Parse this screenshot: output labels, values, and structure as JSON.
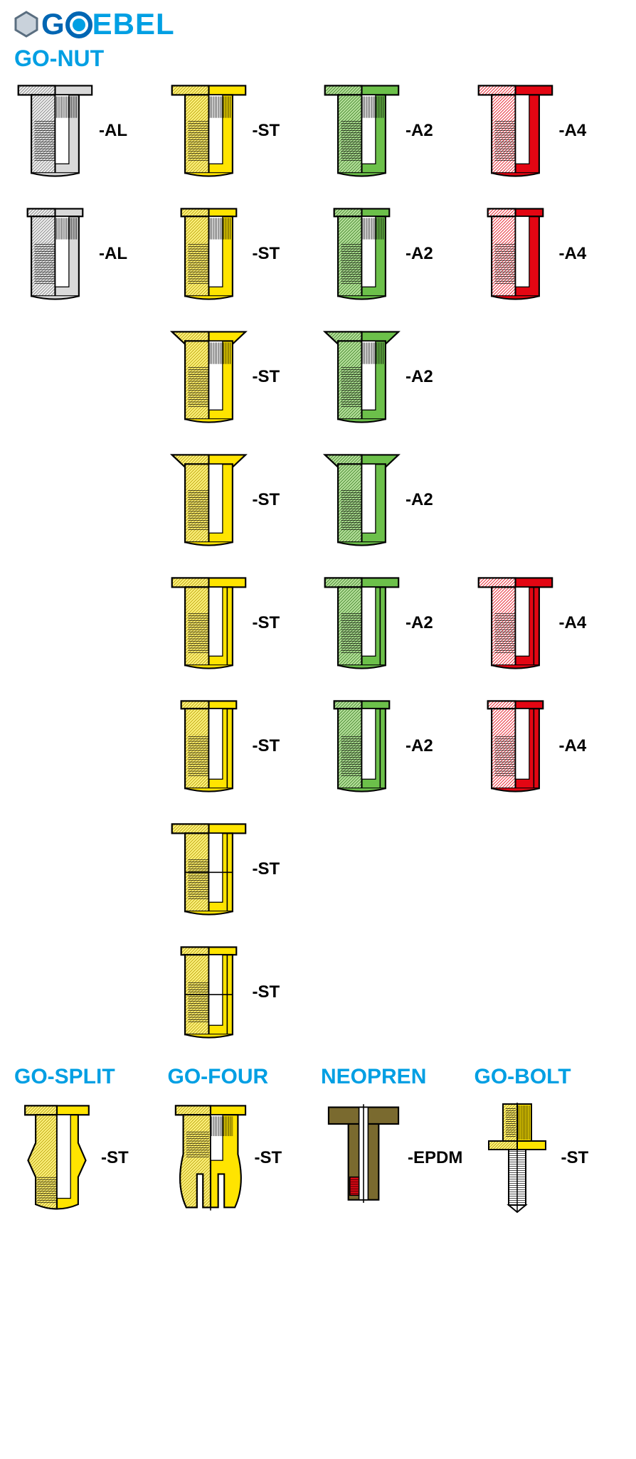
{
  "logo": {
    "text": "GOEBEL",
    "hex_stroke": "#5a6e80",
    "hex_fill": "#c9d2db",
    "o_outer": "#0066b3",
    "o_inner": "#009fe3",
    "text_color": "#009fe3"
  },
  "colors": {
    "AL": {
      "stroke": "#000000",
      "fill": "#d9d9d9",
      "light": "#f2f2f2"
    },
    "ST": {
      "stroke": "#000000",
      "fill": "#ffe400",
      "light": "#fff380"
    },
    "A2": {
      "stroke": "#000000",
      "fill": "#6cc04a",
      "light": "#b9e39f"
    },
    "A4": {
      "stroke": "#000000",
      "fill": "#e30613",
      "light": "#ffffff"
    },
    "EPDM_body": "#7a6a2f",
    "EPDM_accent": "#e30613"
  },
  "section_color": "#009fe3",
  "gonut": {
    "title": "GO-NUT",
    "rows": [
      [
        {
          "mat": "AL",
          "label": "-AL",
          "shape": "flat_knurl"
        },
        {
          "mat": "ST",
          "label": "-ST",
          "shape": "flat_knurl"
        },
        {
          "mat": "A2",
          "label": "-A2",
          "shape": "flat_knurl"
        },
        {
          "mat": "A4",
          "label": "-A4",
          "shape": "flat_smooth"
        }
      ],
      [
        {
          "mat": "AL",
          "label": "-AL",
          "shape": "small_knurl"
        },
        {
          "mat": "ST",
          "label": "-ST",
          "shape": "small_knurl"
        },
        {
          "mat": "A2",
          "label": "-A2",
          "shape": "small_knurl"
        },
        {
          "mat": "A4",
          "label": "-A4",
          "shape": "small_smooth"
        }
      ],
      [
        null,
        {
          "mat": "ST",
          "label": "-ST",
          "shape": "csk_knurl"
        },
        {
          "mat": "A2",
          "label": "-A2",
          "shape": "csk_knurl"
        },
        null
      ],
      [
        null,
        {
          "mat": "ST",
          "label": "-ST",
          "shape": "csk_smooth"
        },
        {
          "mat": "A2",
          "label": "-A2",
          "shape": "csk_smooth"
        },
        null
      ],
      [
        null,
        {
          "mat": "ST",
          "label": "-ST",
          "shape": "hex_flat"
        },
        {
          "mat": "A2",
          "label": "-A2",
          "shape": "hex_flat"
        },
        {
          "mat": "A4",
          "label": "-A4",
          "shape": "hex_flat"
        }
      ],
      [
        null,
        {
          "mat": "ST",
          "label": "-ST",
          "shape": "hex_small"
        },
        {
          "mat": "A2",
          "label": "-A2",
          "shape": "hex_small"
        },
        {
          "mat": "A4",
          "label": "-A4",
          "shape": "hex_small"
        }
      ],
      [
        null,
        {
          "mat": "ST",
          "label": "-ST",
          "shape": "halfhex_flat"
        },
        null,
        null
      ],
      [
        null,
        {
          "mat": "ST",
          "label": "-ST",
          "shape": "halfhex_small"
        },
        null,
        null
      ]
    ]
  },
  "bottom": [
    {
      "title": "GO-SPLIT",
      "mat": "ST",
      "label": "-ST",
      "shape": "split"
    },
    {
      "title": "GO-FOUR",
      "mat": "ST",
      "label": "-ST",
      "shape": "four"
    },
    {
      "title": "NEOPREN",
      "mat": "EPDM",
      "label": "-EPDM",
      "shape": "neopren"
    },
    {
      "title": "GO-BOLT",
      "mat": "ST",
      "label": "-ST",
      "shape": "bolt"
    }
  ]
}
